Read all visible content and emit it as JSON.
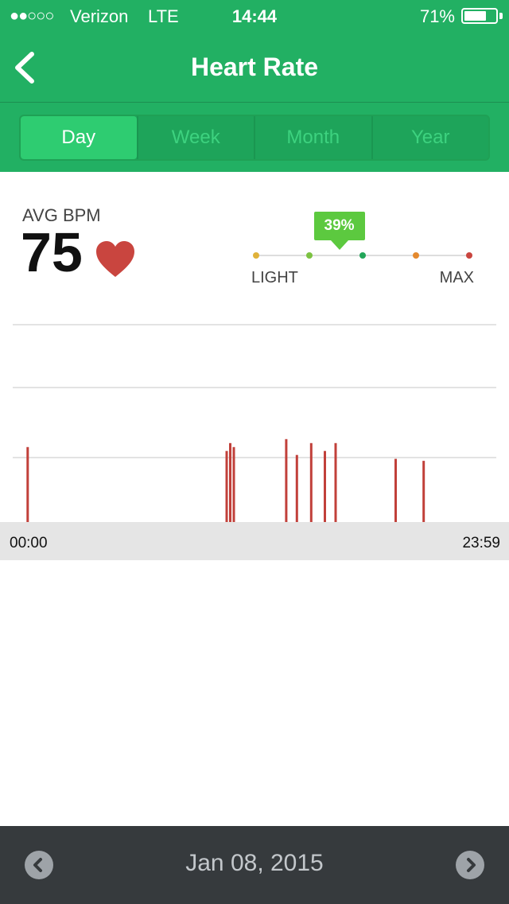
{
  "status_bar": {
    "signal": "●●○○○",
    "carrier": "Verizon",
    "network": "LTE",
    "time": "14:44",
    "battery_percent_label": "71%",
    "battery_level": 0.71
  },
  "header": {
    "title": "Heart Rate",
    "back_icon": "chevron-left-icon"
  },
  "tabs": [
    {
      "label": "Day",
      "active": true
    },
    {
      "label": "Week",
      "active": false
    },
    {
      "label": "Month",
      "active": false
    },
    {
      "label": "Year",
      "active": false
    }
  ],
  "summary": {
    "avg_label": "AVG BPM",
    "avg_value": "75",
    "heart_icon": "heart-icon",
    "heart_color": "#c9453f"
  },
  "zone": {
    "percent_label": "39%",
    "percent_value": 0.39,
    "min_label": "LIGHT",
    "max_label": "MAX",
    "colors": [
      "#e0b23a",
      "#7cc242",
      "#22a659",
      "#e4892e",
      "#c9453f"
    ],
    "badge_color": "#5cc93f"
  },
  "chart_data": {
    "type": "bar",
    "xlabel": "",
    "ylabel": "",
    "x_range": [
      "00:00",
      "23:59"
    ],
    "bar_color": "#c1403a",
    "grid": true,
    "gridline_count": 3,
    "bars": [
      {
        "t": 0.027,
        "v": 0.38
      },
      {
        "t": 0.418,
        "v": 0.36
      },
      {
        "t": 0.425,
        "v": 0.4
      },
      {
        "t": 0.432,
        "v": 0.38
      },
      {
        "t": 0.535,
        "v": 0.42
      },
      {
        "t": 0.556,
        "v": 0.34
      },
      {
        "t": 0.584,
        "v": 0.4
      },
      {
        "t": 0.611,
        "v": 0.36
      },
      {
        "t": 0.632,
        "v": 0.4
      },
      {
        "t": 0.75,
        "v": 0.32
      },
      {
        "t": 0.805,
        "v": 0.31
      }
    ]
  },
  "timeline": {
    "start": "00:00",
    "end": "23:59"
  },
  "footer": {
    "date": "Jan 08, 2015",
    "prev_icon": "chevron-left-icon",
    "next_icon": "chevron-right-icon"
  }
}
